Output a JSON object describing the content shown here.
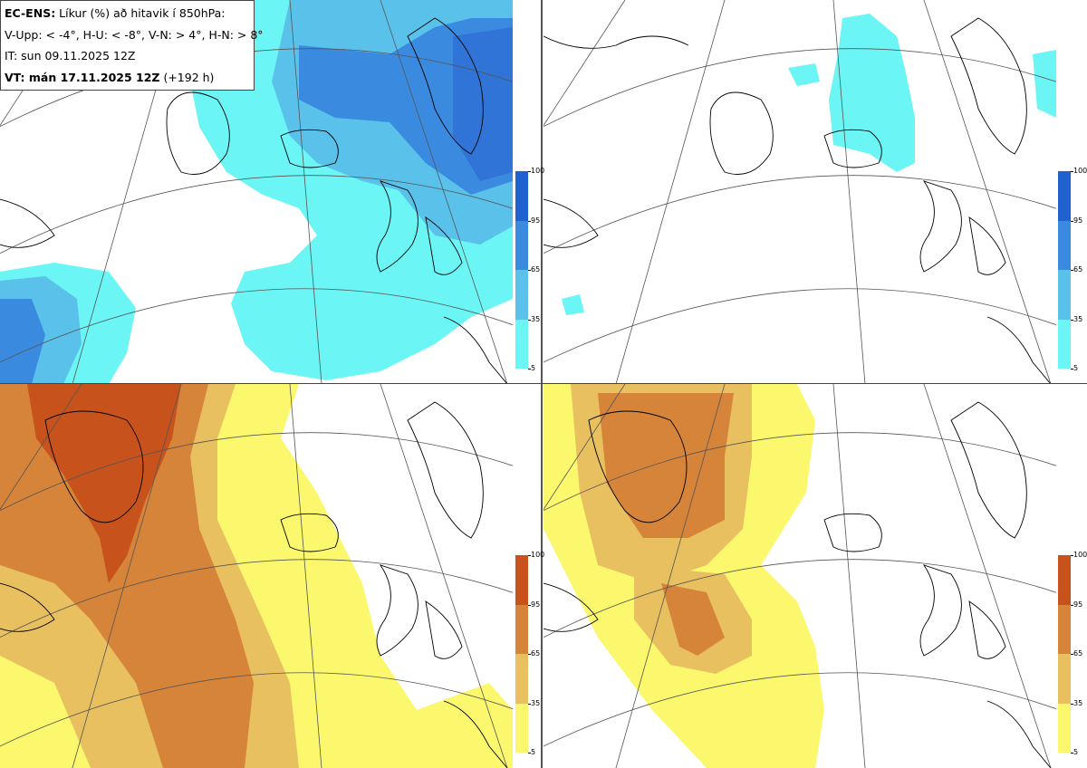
{
  "header": {
    "model": "EC-ENS:",
    "description": " Líkur (%) að hitavik í 850hPa:",
    "thresholds": "V-Upp: < -4°, H-U: < -8°, V-N: > 4°, H-N: > 8°",
    "issue_time": "IT: sun 09.11.2025 12Z",
    "valid_label": "VT: mán 17.11.2025 12Z",
    "valid_offset": " (+192 h)"
  },
  "colorbar": {
    "ticks": [
      "100",
      "95",
      "65",
      "35",
      "5"
    ],
    "cold_colors": [
      "#1f62cf",
      "#3a8be0",
      "#5ac2ea",
      "#6cf5f5"
    ],
    "warm_colors": [
      "#c8521c",
      "#d5843a",
      "#e8c060",
      "#fbf86e"
    ]
  },
  "panels": [
    {
      "id": "V-Upp",
      "description": "cold anomaly < -4°"
    },
    {
      "id": "H-U",
      "description": "cold anomaly < -8°"
    },
    {
      "id": "V-N",
      "description": "warm anomaly > 4°"
    },
    {
      "id": "H-N",
      "description": "warm anomaly > 8°"
    }
  ]
}
